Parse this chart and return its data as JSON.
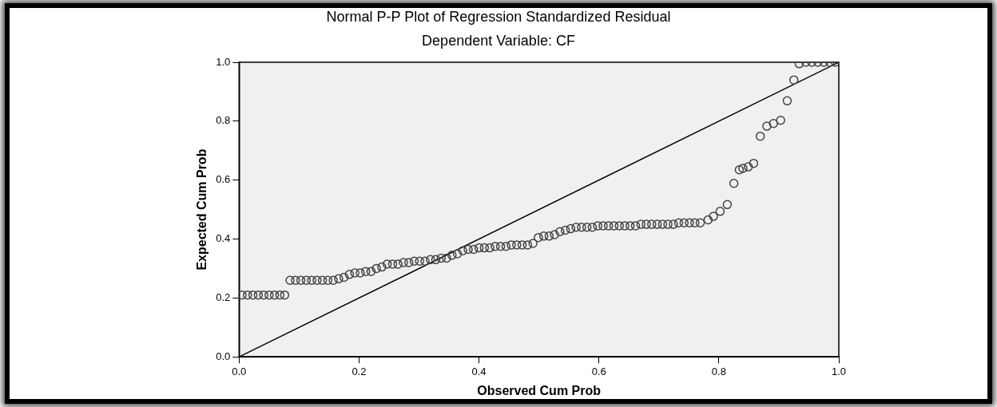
{
  "chart_data": {
    "type": "scatter",
    "title": "Normal P-P Plot of Regression Standardized Residual",
    "subtitle": "Dependent Variable: CF",
    "xlabel": "Observed Cum Prob",
    "ylabel": "Expected Cum Prob",
    "xlim": [
      0,
      1
    ],
    "ylim": [
      0,
      1
    ],
    "xticks": [
      {
        "value": 0,
        "label": "0.0"
      },
      {
        "value": 0.2,
        "label": "0.2"
      },
      {
        "value": 0.4,
        "label": "0.4"
      },
      {
        "value": 0.6,
        "label": "0.6"
      },
      {
        "value": 0.8,
        "label": "0.8"
      },
      {
        "value": 1,
        "label": "1.0"
      }
    ],
    "yticks": [
      {
        "value": 0,
        "label": "0.0"
      },
      {
        "value": 0.2,
        "label": "0.2"
      },
      {
        "value": 0.4,
        "label": "0.4"
      },
      {
        "value": 0.6,
        "label": "0.6"
      },
      {
        "value": 0.8,
        "label": "0.8"
      },
      {
        "value": 1,
        "label": "1.0"
      }
    ],
    "marker": "circle",
    "legend": false,
    "series": [
      {
        "type": "scatter",
        "color": "#444444",
        "x": [
          0.005,
          0.014,
          0.023,
          0.032,
          0.041,
          0.05,
          0.059,
          0.068,
          0.076,
          0.085,
          0.094,
          0.103,
          0.112,
          0.121,
          0.13,
          0.139,
          0.148,
          0.157,
          0.166,
          0.175,
          0.184,
          0.193,
          0.202,
          0.211,
          0.22,
          0.229,
          0.238,
          0.247,
          0.256,
          0.265,
          0.274,
          0.283,
          0.292,
          0.301,
          0.31,
          0.319,
          0.328,
          0.337,
          0.346,
          0.355,
          0.364,
          0.373,
          0.382,
          0.391,
          0.4,
          0.409,
          0.418,
          0.427,
          0.436,
          0.445,
          0.454,
          0.463,
          0.472,
          0.481,
          0.49,
          0.499,
          0.508,
          0.517,
          0.526,
          0.535,
          0.544,
          0.553,
          0.562,
          0.571,
          0.58,
          0.589,
          0.598,
          0.607,
          0.616,
          0.625,
          0.634,
          0.643,
          0.652,
          0.661,
          0.67,
          0.679,
          0.688,
          0.697,
          0.706,
          0.715,
          0.724,
          0.733,
          0.742,
          0.751,
          0.76,
          0.769,
          0.782,
          0.791,
          0.802,
          0.814,
          0.825,
          0.834,
          0.84,
          0.849,
          0.858,
          0.869,
          0.88,
          0.891,
          0.903,
          0.914,
          0.925,
          0.934,
          0.945,
          0.955,
          0.965,
          0.975,
          0.985,
          0.994
        ],
        "values": [
          0.21,
          0.21,
          0.21,
          0.21,
          0.21,
          0.21,
          0.21,
          0.21,
          0.21,
          0.26,
          0.26,
          0.26,
          0.26,
          0.26,
          0.26,
          0.26,
          0.26,
          0.26,
          0.265,
          0.27,
          0.28,
          0.285,
          0.285,
          0.29,
          0.29,
          0.3,
          0.305,
          0.315,
          0.315,
          0.315,
          0.32,
          0.32,
          0.325,
          0.325,
          0.325,
          0.33,
          0.33,
          0.335,
          0.335,
          0.345,
          0.35,
          0.36,
          0.365,
          0.365,
          0.37,
          0.37,
          0.37,
          0.375,
          0.375,
          0.375,
          0.38,
          0.38,
          0.38,
          0.38,
          0.385,
          0.405,
          0.41,
          0.41,
          0.415,
          0.425,
          0.43,
          0.435,
          0.44,
          0.44,
          0.44,
          0.44,
          0.445,
          0.445,
          0.445,
          0.445,
          0.445,
          0.445,
          0.445,
          0.445,
          0.45,
          0.45,
          0.45,
          0.45,
          0.45,
          0.45,
          0.45,
          0.455,
          0.455,
          0.455,
          0.455,
          0.455,
          0.465,
          0.477,
          0.494,
          0.517,
          0.589,
          0.635,
          0.64,
          0.645,
          0.657,
          0.749,
          0.783,
          0.792,
          0.803,
          0.869,
          0.94,
          0.995,
          1,
          1,
          1,
          1,
          1,
          1
        ]
      },
      {
        "type": "line",
        "color": "#000000",
        "marker": "none",
        "x": [
          0,
          1
        ],
        "values": [
          0,
          1
        ]
      }
    ]
  }
}
